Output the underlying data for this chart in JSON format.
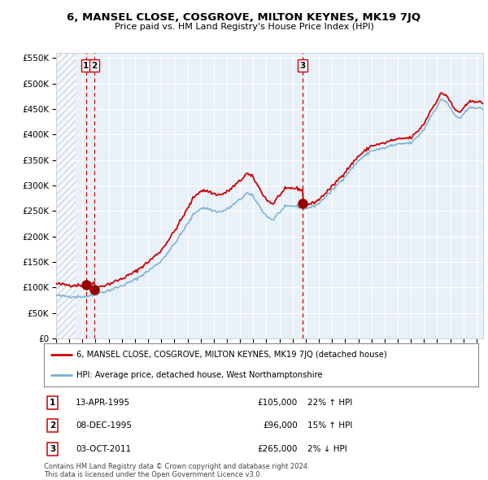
{
  "title": "6, MANSEL CLOSE, COSGROVE, MILTON KEYNES, MK19 7JQ",
  "subtitle": "Price paid vs. HM Land Registry's House Price Index (HPI)",
  "legend_line1": "6, MANSEL CLOSE, COSGROVE, MILTON KEYNES, MK19 7JQ (detached house)",
  "legend_line2": "HPI: Average price, detached house, West Northamptonshire",
  "transactions": [
    {
      "num": 1,
      "date": "13-APR-1995",
      "price": "£105,000",
      "pct": "22%",
      "dir": "↑"
    },
    {
      "num": 2,
      "date": "08-DEC-1995",
      "price": "£96,000",
      "pct": "15%",
      "dir": "↑"
    },
    {
      "num": 3,
      "date": "03-OCT-2011",
      "price": "£265,000",
      "pct": "2%",
      "dir": "↓"
    }
  ],
  "footer1": "Contains HM Land Registry data © Crown copyright and database right 2024.",
  "footer2": "This data is licensed under the Open Government Licence v3.0.",
  "bg_color": "#e8f0f8",
  "grid_color": "#ffffff",
  "red_line_color": "#cc0000",
  "blue_line_color": "#7ab0d4",
  "dot_color": "#990000",
  "vline_color": "#cc0000",
  "ylim": [
    0,
    560000
  ],
  "yticks": [
    0,
    50000,
    100000,
    150000,
    200000,
    250000,
    300000,
    350000,
    400000,
    450000,
    500000,
    550000
  ],
  "sale1_year": 1995.28,
  "sale2_year": 1995.92,
  "sale3_year": 2011.75,
  "xmin": 1993.0,
  "xmax": 2025.5
}
